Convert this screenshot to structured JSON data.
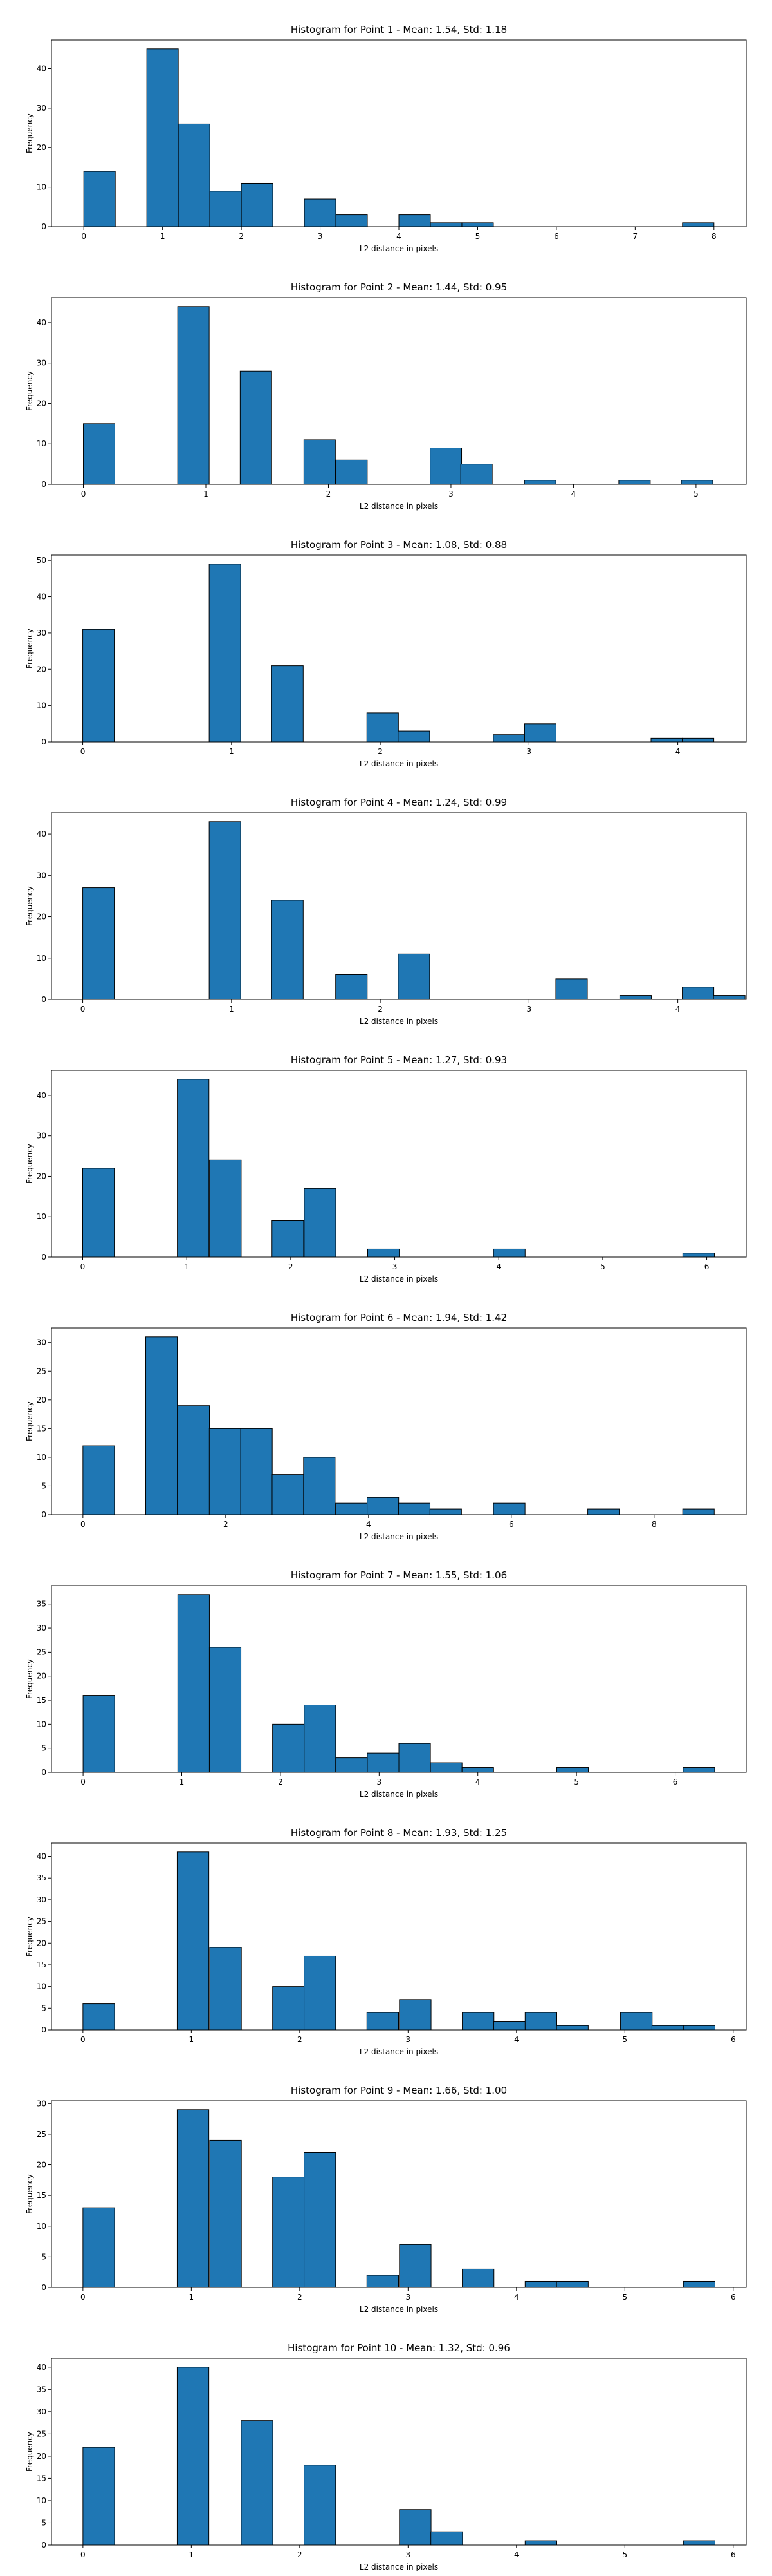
{
  "chart_data": [
    {
      "type": "bar",
      "title": "Histogram for Point 1 - Mean: 1.54, Std: 1.18",
      "xlabel": "L2 distance in pixels",
      "ylabel": "Frequency",
      "xlim": [
        -0.41,
        8.41
      ],
      "ylim": [
        0,
        47.25
      ],
      "xticks": [
        0,
        1,
        2,
        3,
        4,
        5,
        6,
        7,
        8
      ],
      "yticks": [
        0,
        10,
        20,
        30,
        40
      ],
      "bin_width": 0.4,
      "bins": [
        {
          "x0": 0.0,
          "count": 14
        },
        {
          "x0": 0.8,
          "count": 45
        },
        {
          "x0": 1.2,
          "count": 26
        },
        {
          "x0": 1.6,
          "count": 9
        },
        {
          "x0": 2.0,
          "count": 11
        },
        {
          "x0": 2.8,
          "count": 7
        },
        {
          "x0": 3.2,
          "count": 3
        },
        {
          "x0": 4.0,
          "count": 3
        },
        {
          "x0": 4.4,
          "count": 1
        },
        {
          "x0": 4.8,
          "count": 1
        },
        {
          "x0": 7.6,
          "count": 1
        }
      ]
    },
    {
      "type": "bar",
      "title": "Histogram for Point 2 - Mean: 1.44, Std: 0.95",
      "xlabel": "L2 distance in pixels",
      "ylabel": "Frequency",
      "xlim": [
        -0.26,
        5.41
      ],
      "ylim": [
        0,
        46.2
      ],
      "xticks": [
        0,
        1,
        2,
        3,
        4,
        5
      ],
      "yticks": [
        0,
        10,
        20,
        30,
        40
      ],
      "bin_width": 0.257,
      "bins": [
        {
          "x0": 0.0,
          "count": 15
        },
        {
          "x0": 0.77,
          "count": 44
        },
        {
          "x0": 1.28,
          "count": 28
        },
        {
          "x0": 1.8,
          "count": 11
        },
        {
          "x0": 2.06,
          "count": 6
        },
        {
          "x0": 2.83,
          "count": 9
        },
        {
          "x0": 3.08,
          "count": 5
        },
        {
          "x0": 3.6,
          "count": 1
        },
        {
          "x0": 4.37,
          "count": 1
        },
        {
          "x0": 4.88,
          "count": 1
        }
      ]
    },
    {
      "type": "bar",
      "title": "Histogram for Point 3 - Mean: 1.08, Std: 0.88",
      "xlabel": "L2 distance in pixels",
      "ylabel": "Frequency",
      "xlim": [
        -0.21,
        4.46
      ],
      "ylim": [
        0,
        51.45
      ],
      "xticks": [
        0,
        1,
        2,
        3,
        4
      ],
      "yticks": [
        0,
        10,
        20,
        30,
        40,
        50
      ],
      "bin_width": 0.212,
      "bins": [
        {
          "x0": 0.0,
          "count": 31
        },
        {
          "x0": 0.85,
          "count": 49
        },
        {
          "x0": 1.27,
          "count": 21
        },
        {
          "x0": 1.91,
          "count": 8
        },
        {
          "x0": 2.12,
          "count": 3
        },
        {
          "x0": 2.76,
          "count": 2
        },
        {
          "x0": 2.97,
          "count": 5
        },
        {
          "x0": 3.82,
          "count": 1
        },
        {
          "x0": 4.03,
          "count": 1
        }
      ]
    },
    {
      "type": "bar",
      "title": "Histogram for Point 4 - Mean: 1.24, Std: 0.99",
      "xlabel": "L2 distance in pixels",
      "ylabel": "Frequency",
      "xlim": [
        -0.21,
        4.46
      ],
      "ylim": [
        0,
        45.15
      ],
      "xticks": [
        0,
        1,
        2,
        3,
        4
      ],
      "yticks": [
        0,
        10,
        20,
        30,
        40
      ],
      "bin_width": 0.212,
      "bins": [
        {
          "x0": 0.0,
          "count": 27
        },
        {
          "x0": 0.85,
          "count": 43
        },
        {
          "x0": 1.27,
          "count": 24
        },
        {
          "x0": 1.7,
          "count": 6
        },
        {
          "x0": 2.12,
          "count": 11
        },
        {
          "x0": 3.18,
          "count": 5
        },
        {
          "x0": 3.61,
          "count": 1
        },
        {
          "x0": 4.03,
          "count": 3
        },
        {
          "x0": 4.24,
          "count": 1
        }
      ]
    },
    {
      "type": "bar",
      "title": "Histogram for Point 5 - Mean: 1.27, Std: 0.93",
      "xlabel": "L2 distance in pixels",
      "ylabel": "Frequency",
      "xlim": [
        -0.3,
        6.38
      ],
      "ylim": [
        0,
        46.2
      ],
      "xticks": [
        0,
        1,
        2,
        3,
        4,
        5,
        6
      ],
      "yticks": [
        0,
        10,
        20,
        30,
        40
      ],
      "bin_width": 0.304,
      "bins": [
        {
          "x0": 0.0,
          "count": 22
        },
        {
          "x0": 0.91,
          "count": 44
        },
        {
          "x0": 1.22,
          "count": 24
        },
        {
          "x0": 1.82,
          "count": 9
        },
        {
          "x0": 2.13,
          "count": 17
        },
        {
          "x0": 2.74,
          "count": 2
        },
        {
          "x0": 3.95,
          "count": 2
        },
        {
          "x0": 5.77,
          "count": 1
        }
      ]
    },
    {
      "type": "bar",
      "title": "Histogram for Point 6 - Mean: 1.94, Std: 1.42",
      "xlabel": "L2 distance in pixels",
      "ylabel": "Frequency",
      "xlim": [
        -0.44,
        9.29
      ],
      "ylim": [
        0,
        32.55
      ],
      "xticks": [
        0,
        2,
        4,
        6,
        8
      ],
      "yticks": [
        0,
        5,
        10,
        15,
        20,
        25,
        30
      ],
      "bin_width": 0.442,
      "bins": [
        {
          "x0": 0.0,
          "count": 12
        },
        {
          "x0": 0.88,
          "count": 31
        },
        {
          "x0": 1.33,
          "count": 19
        },
        {
          "x0": 1.77,
          "count": 15
        },
        {
          "x0": 2.21,
          "count": 15
        },
        {
          "x0": 2.65,
          "count": 7
        },
        {
          "x0": 3.09,
          "count": 10
        },
        {
          "x0": 3.54,
          "count": 2
        },
        {
          "x0": 3.98,
          "count": 3
        },
        {
          "x0": 4.42,
          "count": 2
        },
        {
          "x0": 4.86,
          "count": 1
        },
        {
          "x0": 5.75,
          "count": 2
        },
        {
          "x0": 7.07,
          "count": 1
        },
        {
          "x0": 8.4,
          "count": 1
        }
      ]
    },
    {
      "type": "bar",
      "title": "Histogram for Point 7 - Mean: 1.55, Std: 1.06",
      "xlabel": "L2 distance in pixels",
      "ylabel": "Frequency",
      "xlim": [
        -0.32,
        6.72
      ],
      "ylim": [
        0,
        38.85
      ],
      "xticks": [
        0,
        1,
        2,
        3,
        4,
        5,
        6
      ],
      "yticks": [
        0,
        5,
        10,
        15,
        20,
        25,
        30,
        35
      ],
      "bin_width": 0.32,
      "bins": [
        {
          "x0": 0.0,
          "count": 16
        },
        {
          "x0": 0.96,
          "count": 37
        },
        {
          "x0": 1.28,
          "count": 26
        },
        {
          "x0": 1.92,
          "count": 10
        },
        {
          "x0": 2.24,
          "count": 14
        },
        {
          "x0": 2.56,
          "count": 3
        },
        {
          "x0": 2.88,
          "count": 4
        },
        {
          "x0": 3.2,
          "count": 6
        },
        {
          "x0": 3.52,
          "count": 2
        },
        {
          "x0": 3.84,
          "count": 1
        },
        {
          "x0": 4.8,
          "count": 1
        },
        {
          "x0": 6.08,
          "count": 1
        }
      ]
    },
    {
      "type": "bar",
      "title": "Histogram for Point 8 - Mean: 1.93, Std: 1.25",
      "xlabel": "L2 distance in pixels",
      "ylabel": "Frequency",
      "xlim": [
        -0.29,
        6.12
      ],
      "ylim": [
        0,
        43.05
      ],
      "xticks": [
        0,
        1,
        2,
        3,
        4,
        5,
        6
      ],
      "yticks": [
        0,
        5,
        10,
        15,
        20,
        25,
        30,
        35,
        40
      ],
      "bin_width": 0.292,
      "bins": [
        {
          "x0": 0.0,
          "count": 6
        },
        {
          "x0": 0.87,
          "count": 41
        },
        {
          "x0": 1.17,
          "count": 19
        },
        {
          "x0": 1.75,
          "count": 10
        },
        {
          "x0": 2.04,
          "count": 17
        },
        {
          "x0": 2.62,
          "count": 4
        },
        {
          "x0": 2.92,
          "count": 7
        },
        {
          "x0": 3.5,
          "count": 4
        },
        {
          "x0": 3.79,
          "count": 2
        },
        {
          "x0": 4.08,
          "count": 4
        },
        {
          "x0": 4.37,
          "count": 1
        },
        {
          "x0": 4.96,
          "count": 4
        },
        {
          "x0": 5.25,
          "count": 1
        },
        {
          "x0": 5.54,
          "count": 1
        }
      ]
    },
    {
      "type": "bar",
      "title": "Histogram for Point 9 - Mean: 1.66, Std: 1.00",
      "xlabel": "L2 distance in pixels",
      "ylabel": "Frequency",
      "xlim": [
        -0.29,
        6.12
      ],
      "ylim": [
        0,
        30.45
      ],
      "xticks": [
        0,
        1,
        2,
        3,
        4,
        5,
        6
      ],
      "yticks": [
        0,
        5,
        10,
        15,
        20,
        25,
        30
      ],
      "bin_width": 0.292,
      "bins": [
        {
          "x0": 0.0,
          "count": 13
        },
        {
          "x0": 0.87,
          "count": 29
        },
        {
          "x0": 1.17,
          "count": 24
        },
        {
          "x0": 1.75,
          "count": 18
        },
        {
          "x0": 2.04,
          "count": 22
        },
        {
          "x0": 2.62,
          "count": 2
        },
        {
          "x0": 2.92,
          "count": 7
        },
        {
          "x0": 3.5,
          "count": 3
        },
        {
          "x0": 4.08,
          "count": 1
        },
        {
          "x0": 4.37,
          "count": 1
        },
        {
          "x0": 5.54,
          "count": 1
        }
      ]
    },
    {
      "type": "bar",
      "title": "Histogram for Point 10 - Mean: 1.32, Std: 0.96",
      "xlabel": "L2 distance in pixels",
      "ylabel": "Frequency",
      "xlim": [
        -0.29,
        6.12
      ],
      "ylim": [
        0,
        42.0
      ],
      "xticks": [
        0,
        1,
        2,
        3,
        4,
        5,
        6
      ],
      "yticks": [
        0,
        5,
        10,
        15,
        20,
        25,
        30,
        35,
        40
      ],
      "bin_width": 0.292,
      "bins": [
        {
          "x0": 0.0,
          "count": 22
        },
        {
          "x0": 0.87,
          "count": 40
        },
        {
          "x0": 1.46,
          "count": 28
        },
        {
          "x0": 2.04,
          "count": 18
        },
        {
          "x0": 2.92,
          "count": 8
        },
        {
          "x0": 3.21,
          "count": 3
        },
        {
          "x0": 4.08,
          "count": 1
        },
        {
          "x0": 5.54,
          "count": 1
        }
      ]
    }
  ],
  "colors": {
    "bar_fill": "#1f77b4",
    "bar_edge": "#000000"
  }
}
